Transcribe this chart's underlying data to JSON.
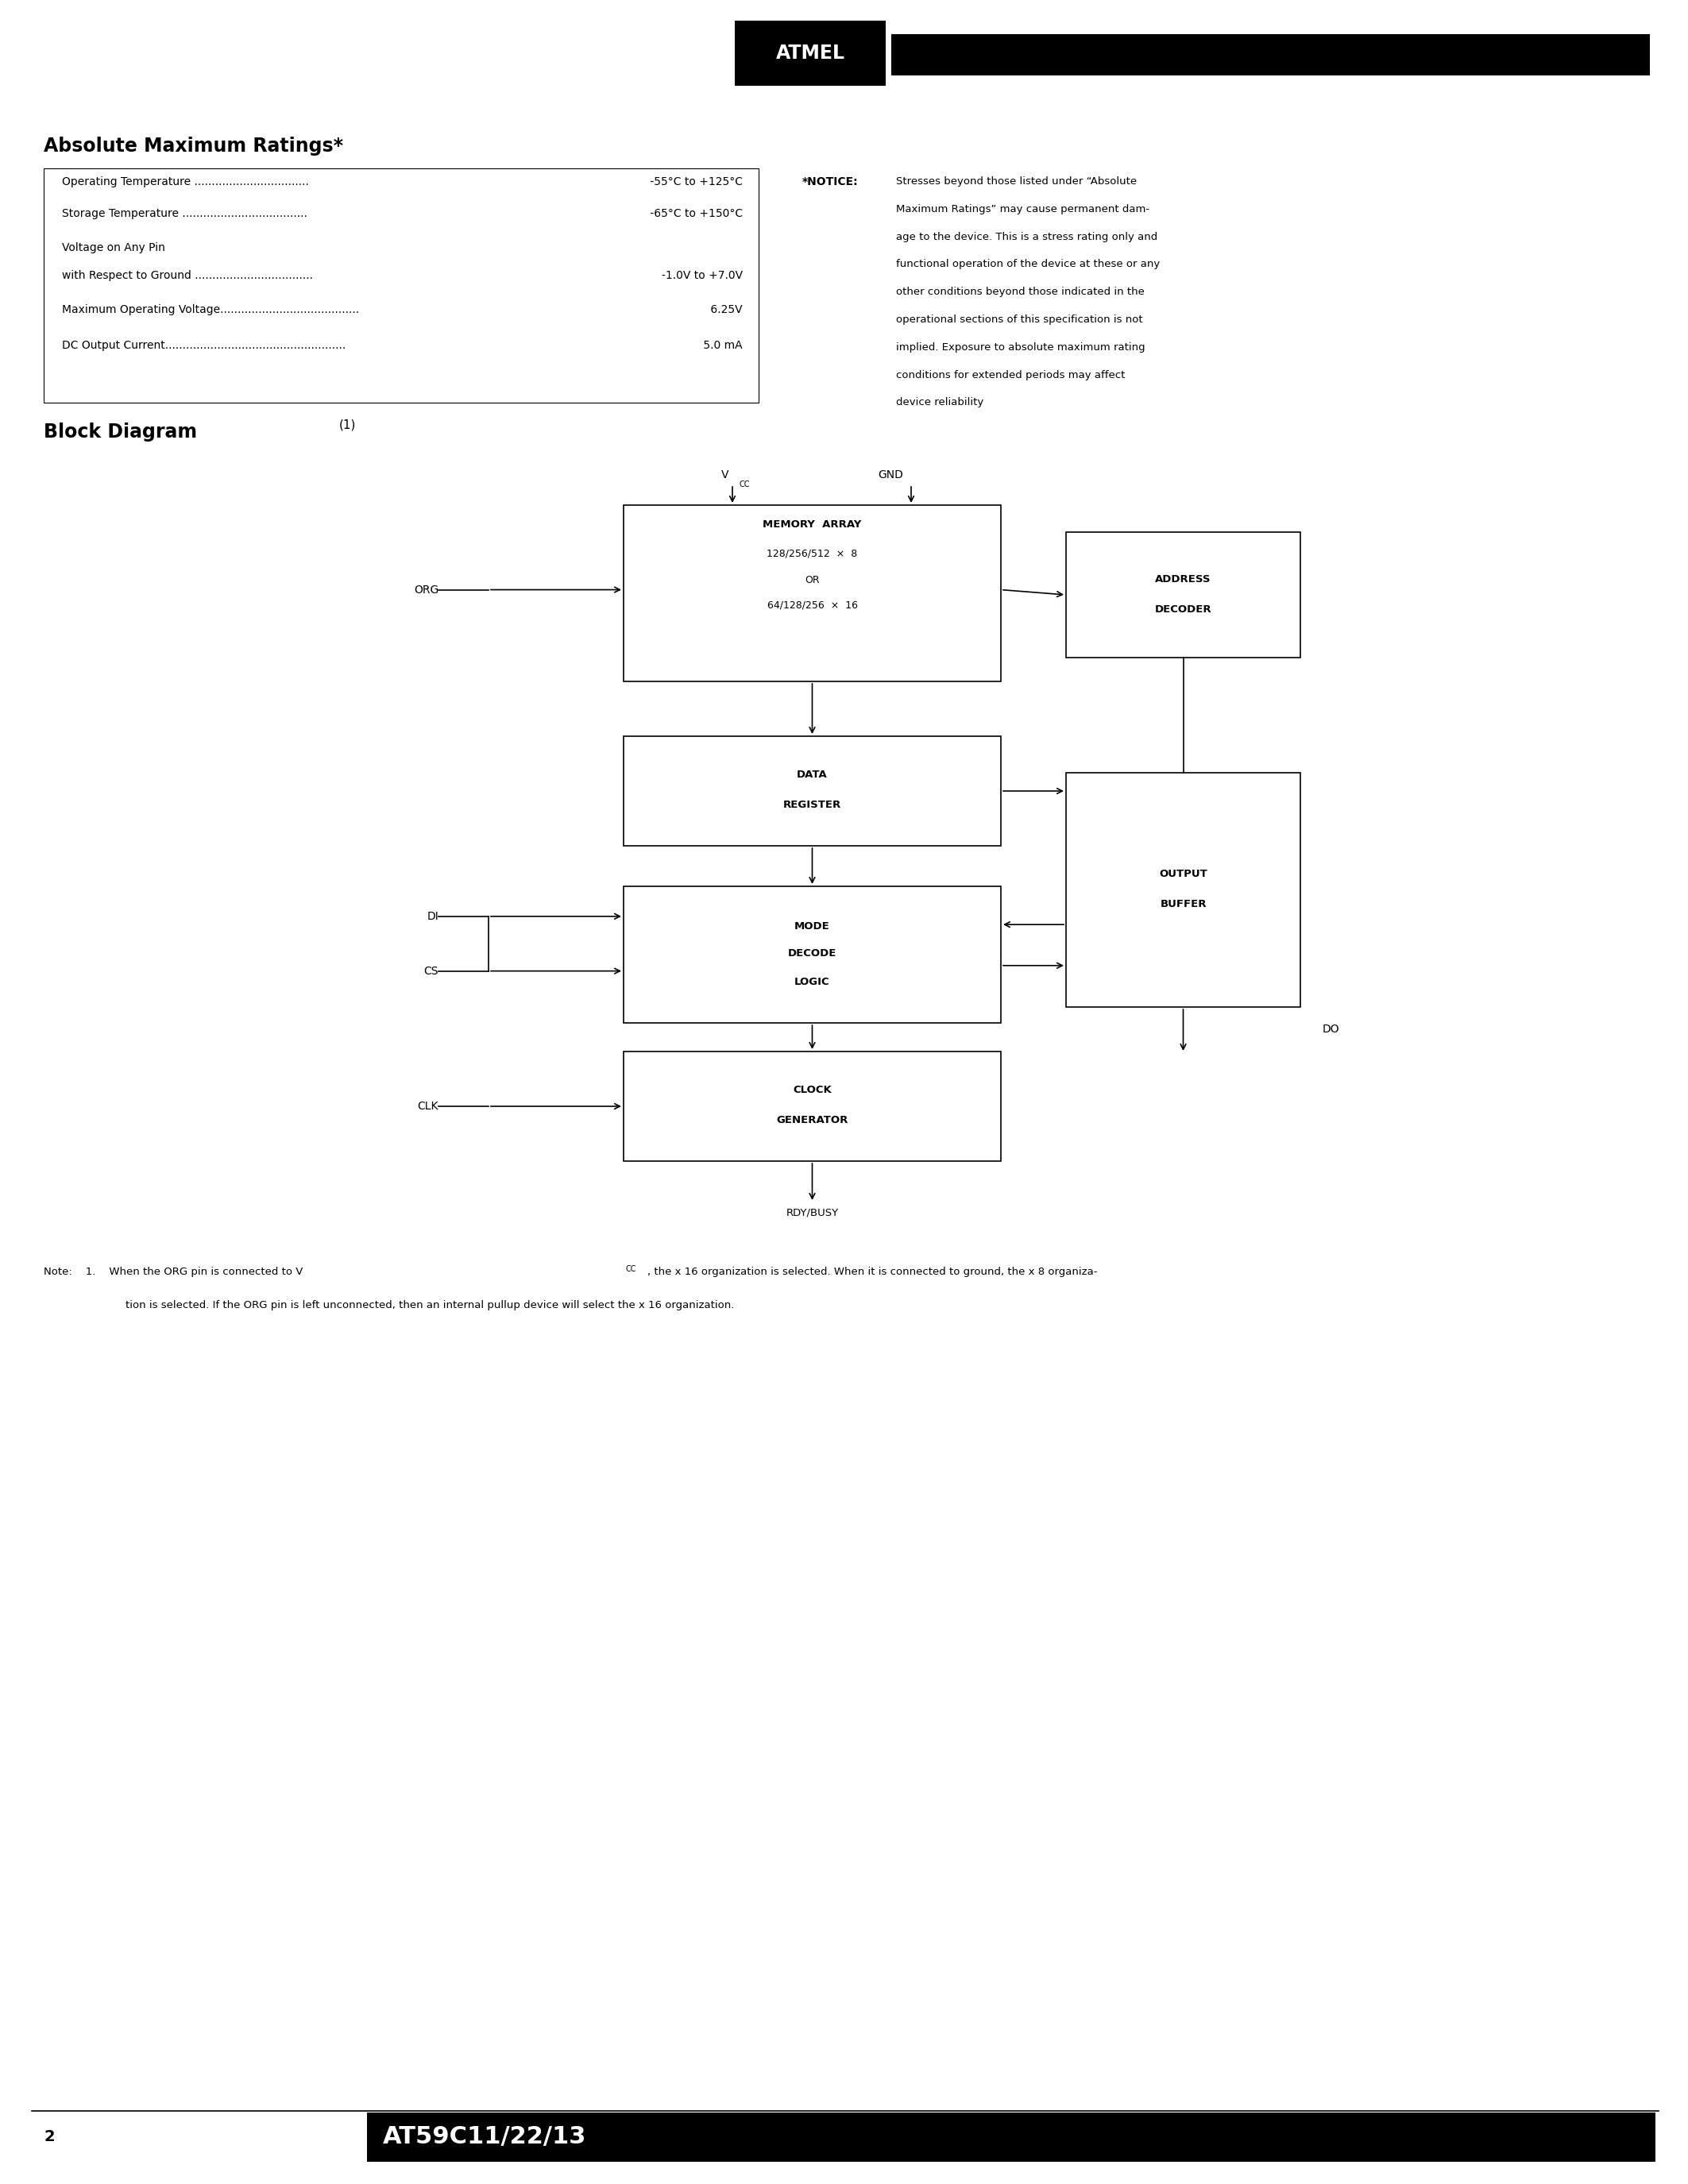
{
  "page_bg": "#ffffff",
  "abs_max_title": "Absolute Maximum Ratings*",
  "notice_title": "*NOTICE:",
  "notice_lines": [
    "Stresses beyond those listed under “Absolute",
    "Maximum Ratings” may cause permanent dam-",
    "age to the device. This is a stress rating only and",
    "functional operation of the device at these or any",
    "other conditions beyond those indicated in the",
    "operational sections of this specification is not",
    "implied. Exposure to absolute maximum rating",
    "conditions for extended periods may affect",
    "device reliability"
  ],
  "abs_rows": [
    [
      "Operating Temperature .................................",
      " -55°C to +125°C"
    ],
    [
      "Storage Temperature ....................................",
      " -65°C to +150°C"
    ],
    [
      "Voltage on Any Pin",
      ""
    ],
    [
      "with Respect to Ground ..................................",
      "-1.0V to +7.0V"
    ],
    [
      "Maximum Operating Voltage........................................",
      " 6.25V"
    ],
    [
      "DC Output Current....................................................",
      " 5.0 mA"
    ]
  ],
  "block_diagram_title": "Block Diagram",
  "block_diagram_super": "(1)",
  "note_line1": "Note:    1.    When the ORG pin is connected to V",
  "note_sub": "CC",
  "note_line1b": ", the x 16 organization is selected. When it is connected to ground, the x 8 organiza-",
  "note_line2": "tion is selected. If the ORG pin is left unconnected, then an internal pullup device will select the x 16 organization.",
  "footer_page": "2",
  "footer_chip": "AT59C11/22/13"
}
